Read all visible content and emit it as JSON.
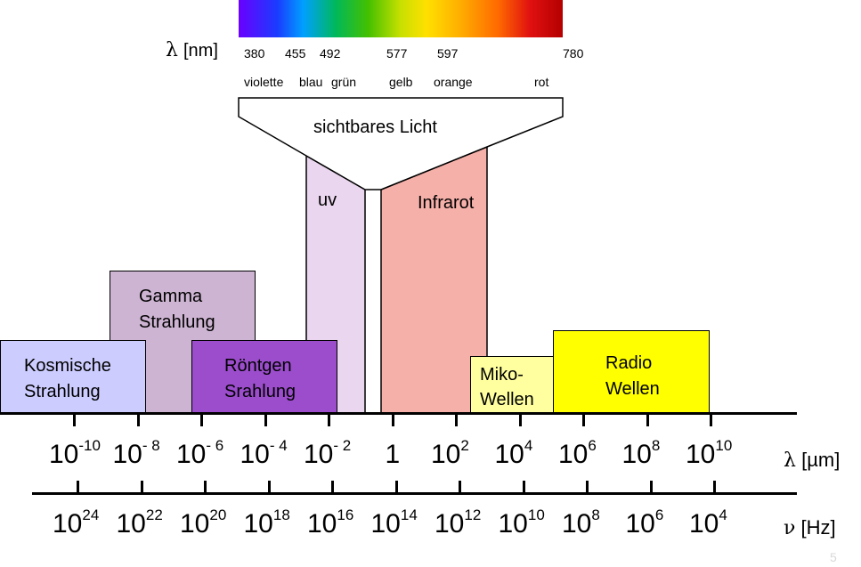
{
  "visible_spectrum": {
    "lambda_label": "λ",
    "unit_label": "[nm]",
    "wavelengths": [
      "380",
      "455",
      "492",
      "577",
      "597",
      "780"
    ],
    "color_names": [
      "violette",
      "blau",
      "grün",
      "gelb",
      "orange",
      "rot"
    ],
    "funnel_label": "sichtbares Licht"
  },
  "regions": {
    "kosmische": [
      "Kosmische",
      "Strahlung"
    ],
    "gamma": [
      "Gamma",
      "Strahlung"
    ],
    "roentgen": [
      "Röntgen",
      "Srahlung"
    ],
    "uv": "uv",
    "infrarot": "Infrarot",
    "mikro": [
      "Miko-",
      "Wellen"
    ],
    "radio": [
      "Radio",
      "Wellen"
    ]
  },
  "wavelength_axis": {
    "symbol": "λ",
    "unit": "[µm]",
    "ticks": [
      {
        "base": "10",
        "exp": "-10"
      },
      {
        "base": "10",
        "exp": "- 8"
      },
      {
        "base": "10",
        "exp": "- 6"
      },
      {
        "base": "10",
        "exp": "- 4"
      },
      {
        "base": "10",
        "exp": "- 2"
      },
      {
        "base": "1",
        "exp": ""
      },
      {
        "base": "10",
        "exp": "2"
      },
      {
        "base": "10",
        "exp": "4"
      },
      {
        "base": "10",
        "exp": "6"
      },
      {
        "base": "10",
        "exp": "8"
      },
      {
        "base": "10",
        "exp": "10"
      }
    ]
  },
  "frequency_axis": {
    "symbol": "ν",
    "unit": "[Hz]",
    "ticks": [
      {
        "base": "10",
        "exp": "24"
      },
      {
        "base": "10",
        "exp": "22"
      },
      {
        "base": "10",
        "exp": "20"
      },
      {
        "base": "10",
        "exp": "18"
      },
      {
        "base": "10",
        "exp": "16"
      },
      {
        "base": "10",
        "exp": "14"
      },
      {
        "base": "10",
        "exp": "12"
      },
      {
        "base": "10",
        "exp": "10"
      },
      {
        "base": "10",
        "exp": "8"
      },
      {
        "base": "10",
        "exp": "6"
      },
      {
        "base": "10",
        "exp": "4"
      }
    ]
  },
  "page_number": "5",
  "colors": {
    "kosmische": "#ccccff",
    "gamma": "#cdb4d2",
    "roentgen": "#9b4dcc",
    "uv": "#ead6ee",
    "infrarot": "#f6b0aa",
    "mikro": "#ffffa0",
    "radio": "#ffff00"
  }
}
